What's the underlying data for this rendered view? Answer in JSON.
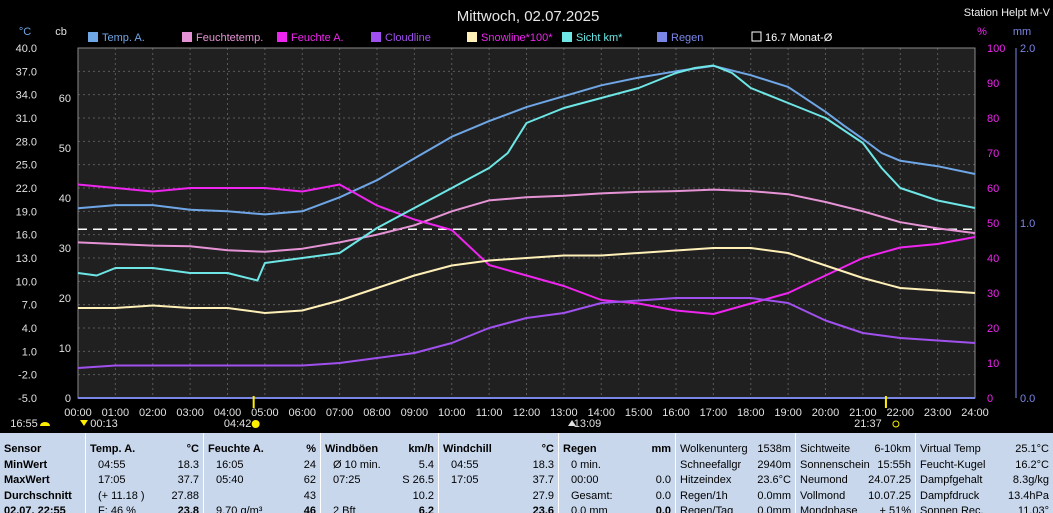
{
  "chart_data": {
    "type": "line",
    "title": "Mittwoch, 02.07.2025",
    "station": "Station Helpt M-V",
    "axes": {
      "left_temp": {
        "unit": "°C",
        "min": -5,
        "max": 40,
        "ticks": [
          "40.0",
          "37.0",
          "34.0",
          "31.0",
          "28.0",
          "25.0",
          "22.0",
          "19.0",
          "16.0",
          "13.0",
          "10.0",
          "7.0",
          "4.0",
          "1.0",
          "-2.0",
          "-5.0"
        ]
      },
      "left_cloud": {
        "unit": "cb",
        "min": 0,
        "max": 70,
        "ticks": [
          "60",
          "50",
          "40",
          "30",
          "20",
          "10",
          "0"
        ]
      },
      "right_hum": {
        "unit": "%",
        "min": 0,
        "max": 100,
        "ticks": [
          "100",
          "90",
          "80",
          "70",
          "60",
          "50",
          "40",
          "30",
          "20",
          "10",
          "0"
        ]
      },
      "right_rain": {
        "unit": "mm",
        "min": 0,
        "max": 2,
        "ticks": [
          "2.0",
          "1.0",
          "0.0"
        ]
      },
      "x_ticks": [
        "00:00",
        "01:00",
        "02:00",
        "03:00",
        "04:00",
        "05:00",
        "06:00",
        "07:00",
        "08:00",
        "09:00",
        "10:00",
        "11:00",
        "12:00",
        "13:00",
        "14:00",
        "15:00",
        "16:00",
        "17:00",
        "18:00",
        "19:00",
        "20:00",
        "21:00",
        "22:00",
        "23:00",
        "24:00"
      ]
    },
    "legend": [
      {
        "name": "Temp. A.",
        "color": "#6fa6e6"
      },
      {
        "name": "Feuchtetemp.",
        "color": "#e693d6"
      },
      {
        "name": "Feuchte A.",
        "color": "#ee25ee"
      },
      {
        "name": "Cloudline",
        "color": "#a050ee"
      },
      {
        "name": "Snowline*100*",
        "color": "#fff0b8"
      },
      {
        "name": "Sicht km*",
        "color": "#6ee6e6"
      },
      {
        "name": "Regen",
        "color": "#7a86e6"
      },
      {
        "name": "16.7 Monat-Ø",
        "color": "#ffffff"
      }
    ],
    "monthly_avg_temp": 16.7,
    "series": [
      {
        "name": "Temp. A.",
        "axis": "temp",
        "color": "#6fa6e6",
        "x": [
          0,
          1,
          2,
          3,
          4,
          5,
          6,
          7,
          8,
          9,
          10,
          11,
          12,
          13,
          14,
          15,
          16,
          17,
          18,
          19,
          20,
          20.5,
          21,
          21.5,
          22,
          23,
          24
        ],
        "y": [
          19.4,
          19.8,
          19.8,
          19.2,
          19.0,
          18.6,
          19.0,
          20.8,
          23.0,
          25.8,
          28.6,
          30.6,
          32.4,
          33.8,
          35.2,
          36.2,
          37.0,
          37.7,
          36.5,
          35.0,
          31.8,
          30.0,
          28.3,
          26.5,
          25.5,
          24.8,
          23.8
        ]
      },
      {
        "name": "Feuchtetemp.",
        "axis": "temp",
        "color": "#e693d6",
        "x": [
          0,
          1,
          2,
          3,
          4,
          5,
          6,
          7,
          8,
          9,
          10,
          11,
          12,
          13,
          14,
          15,
          16,
          17,
          18,
          19,
          20,
          21,
          22,
          23,
          24
        ],
        "y": [
          15.0,
          14.8,
          14.6,
          14.5,
          14.0,
          13.8,
          14.2,
          15.0,
          16.0,
          17.2,
          19.0,
          20.4,
          20.8,
          21.0,
          21.3,
          21.5,
          21.6,
          21.8,
          21.6,
          21.2,
          20.2,
          19.0,
          17.6,
          16.8,
          16.2
        ]
      },
      {
        "name": "Feuchte A.",
        "axis": "hum",
        "color": "#ee25ee",
        "x": [
          0,
          1,
          2,
          3,
          4,
          5,
          6,
          7,
          8,
          9,
          10,
          11,
          12,
          13,
          14,
          15,
          16,
          17,
          18,
          19,
          20,
          21,
          22,
          23,
          24
        ],
        "y": [
          61,
          60,
          59,
          60,
          60,
          60,
          59,
          61,
          55,
          51,
          48,
          38,
          35,
          32,
          28,
          27,
          25,
          24,
          27,
          30,
          35,
          40,
          43,
          44,
          46
        ]
      },
      {
        "name": "Cloudline",
        "axis": "cloud",
        "color": "#a050ee",
        "x": [
          0,
          1,
          2,
          3,
          4,
          5,
          6,
          7,
          8,
          9,
          10,
          11,
          12,
          13,
          14,
          15,
          16,
          17,
          18,
          19,
          20,
          21,
          22,
          23,
          24
        ],
        "y": [
          6,
          6.5,
          6.5,
          6.5,
          6.5,
          6.5,
          6.5,
          7,
          8,
          9,
          11,
          14,
          16,
          17,
          19,
          19.5,
          20,
          20,
          20,
          19,
          15.5,
          13,
          12,
          11.5,
          11
        ]
      },
      {
        "name": "Snowline*100*",
        "axis": "cloud",
        "color": "#fff0b8",
        "x": [
          0,
          1,
          2,
          3,
          4,
          5,
          6,
          7,
          8,
          9,
          10,
          11,
          12,
          13,
          14,
          15,
          16,
          17,
          18,
          19,
          20,
          21,
          22,
          23,
          24
        ],
        "y": [
          18,
          18,
          18.5,
          18,
          18,
          17,
          17.5,
          19.5,
          22,
          24.5,
          26.5,
          27.5,
          28,
          28.5,
          28.5,
          29,
          29.5,
          30,
          30,
          29,
          26.5,
          24,
          22,
          21.5,
          21
        ]
      },
      {
        "name": "Sicht km*",
        "axis": "cloud",
        "color": "#6ee6e6",
        "x": [
          0,
          0.5,
          1,
          2,
          3,
          4,
          4.8,
          5,
          6,
          7,
          8,
          9,
          10,
          10.5,
          11,
          11.5,
          12,
          13,
          14,
          15,
          16,
          16.5,
          17,
          17.5,
          18,
          19,
          20,
          21,
          21.5,
          22,
          23,
          24
        ],
        "y": [
          25,
          24.5,
          26,
          26,
          25,
          25,
          23.5,
          27,
          28,
          29,
          34,
          38,
          42,
          44,
          46,
          49,
          55,
          58,
          60,
          62,
          65,
          66,
          66.5,
          65,
          62,
          59,
          56,
          51,
          46,
          42,
          39.5,
          38
        ]
      },
      {
        "name": "Regen",
        "axis": "rain",
        "color": "#7a86e6",
        "x": [
          0,
          24
        ],
        "y": [
          0,
          0
        ]
      }
    ],
    "sun_times": {
      "rise": "04:42",
      "set": "21:37",
      "noon": "13:09",
      "sun_ticks": {
        "left": "16:55",
        "right": "00:13"
      }
    }
  },
  "panel": {
    "sensor": {
      "hdr": "Sensor",
      "rows": [
        "MinWert",
        "MaxWert",
        "Durchschnitt",
        "02.07. 22:55"
      ]
    },
    "temp": {
      "hdr": "Temp. A.",
      "unit": "°C",
      "rows": [
        [
          "04:55",
          "18.3"
        ],
        [
          "17:05",
          "37.7"
        ],
        [
          "(+ 11.18 )",
          "27.88"
        ],
        [
          "F: 46 %",
          "23.8"
        ]
      ]
    },
    "hum": {
      "hdr": "Feuchte A.",
      "unit": "%",
      "rows": [
        [
          "16:05",
          "24"
        ],
        [
          "05:40",
          "62"
        ],
        [
          "",
          "43"
        ],
        [
          "9.70 g/m³",
          "46"
        ]
      ]
    },
    "wind": {
      "hdr": "Windböen",
      "unit": "km/h",
      "rows": [
        [
          "Ø 10 min.",
          "5.4"
        ],
        [
          "07:25",
          "S 26.5"
        ],
        [
          "",
          "10.2"
        ],
        [
          "2 Bft",
          "6.2"
        ]
      ]
    },
    "chill": {
      "hdr": "Windchill",
      "unit": "°C",
      "rows": [
        [
          "04:55",
          "18.3"
        ],
        [
          "17:05",
          "37.7"
        ],
        [
          "",
          "27.9"
        ],
        [
          "",
          "23.6"
        ]
      ]
    },
    "rain": {
      "hdr": "Regen",
      "unit": "mm",
      "rows": [
        [
          "0 min.",
          ""
        ],
        [
          "00:00",
          "0.0"
        ],
        [
          "Gesamt:",
          "0.0"
        ],
        [
          "0.0 mm",
          "0.0"
        ]
      ]
    },
    "cloud": {
      "rows": [
        [
          "Wolkenunterg",
          "1538m"
        ],
        [
          "Schneefallgr",
          "2940m"
        ],
        [
          "Hitzeindex",
          "23.6°C"
        ],
        [
          "Regen/1h",
          "0.0mm"
        ],
        [
          "Regen/Tag",
          "0.0mm"
        ]
      ]
    },
    "sun": {
      "rows": [
        [
          "Sichtweite",
          "6-10km"
        ],
        [
          "Sonnenschein",
          "15:55h"
        ],
        [
          "Neumond",
          "24.07.25"
        ],
        [
          "Vollmond",
          "10.07.25"
        ],
        [
          "Mondphase",
          "+ 51%"
        ]
      ]
    },
    "virt": {
      "rows": [
        [
          "Virtual Temp",
          "25.1°C"
        ],
        [
          "Feucht-Kugel",
          "16.2°C"
        ],
        [
          "Dampfgehalt",
          "8.3g/kg"
        ],
        [
          "Dampfdruck",
          "13.4hPa"
        ],
        [
          "Sonnen Rec.",
          "11.03°"
        ]
      ]
    }
  }
}
